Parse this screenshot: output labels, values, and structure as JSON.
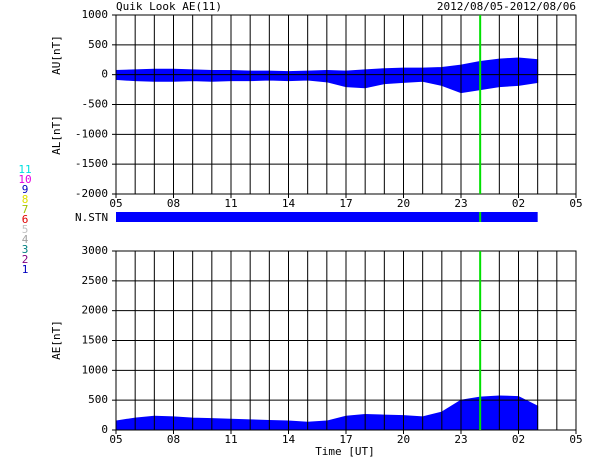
{
  "chart_data": {
    "type": "area",
    "title": "Quik Look AE(11)",
    "date_range": "2012/08/05-2012/08/06",
    "xlabel": "Time [UT]",
    "xlim": [
      5,
      29
    ],
    "xticks": [
      {
        "value": 5,
        "label": "05"
      },
      {
        "value": 8,
        "label": "08"
      },
      11,
      14,
      17,
      20,
      23,
      {
        "value": 26,
        "label": "02"
      },
      {
        "value": 29,
        "label": "05"
      }
    ],
    "grid": true,
    "color": "#0000ff",
    "marker_x": 24,
    "marker_color": "#00e000",
    "x": [
      5,
      6,
      7,
      8,
      9,
      10,
      11,
      12,
      13,
      14,
      15,
      16,
      17,
      18,
      19,
      20,
      21,
      22,
      23,
      24,
      25,
      26,
      27
    ],
    "station_label": "N.STN",
    "stations": [
      {
        "label": "11",
        "color": "#00e0e0"
      },
      {
        "label": "10",
        "color": "#e000e0"
      },
      {
        "label": "9",
        "color": "#0000c0"
      },
      {
        "label": "8",
        "color": "#e0e000"
      },
      {
        "label": "7",
        "color": "#a0c000"
      },
      {
        "label": "6",
        "color": "#e00000"
      },
      {
        "label": "5",
        "color": "#c0c0c0"
      },
      {
        "label": "4",
        "color": "#a0a0a0"
      },
      {
        "label": "3",
        "color": "#008080"
      },
      {
        "label": "2",
        "color": "#800080"
      },
      {
        "label": "1",
        "color": "#0000c0"
      }
    ],
    "panels": [
      {
        "ylim": [
          -2000,
          1000
        ],
        "yticks": [
          -2000,
          -1500,
          -1000,
          -500,
          0,
          500,
          1000
        ],
        "series": [
          {
            "name": "AU[nT]",
            "values": [
              70,
              80,
              90,
              90,
              80,
              70,
              70,
              60,
              60,
              50,
              60,
              70,
              60,
              80,
              100,
              110,
              110,
              120,
              160,
              220,
              260,
              280,
              250
            ]
          },
          {
            "name": "AL[nT]",
            "values": [
              -80,
              -100,
              -110,
              -110,
              -100,
              -110,
              -100,
              -100,
              -90,
              -100,
              -90,
              -120,
              -200,
              -220,
              -150,
              -130,
              -110,
              -180,
              -300,
              -250,
              -200,
              -180,
              -130
            ]
          }
        ]
      },
      {
        "ylim": [
          0,
          3000
        ],
        "yticks": [
          0,
          500,
          1000,
          1500,
          2000,
          2500,
          3000
        ],
        "series": [
          {
            "name": "AE[nT]",
            "values": [
              150,
              200,
              230,
              220,
              200,
              190,
              180,
              170,
              160,
              150,
              130,
              150,
              230,
              260,
              250,
              240,
              220,
              300,
              500,
              550,
              570,
              560,
              400
            ]
          }
        ]
      }
    ]
  }
}
